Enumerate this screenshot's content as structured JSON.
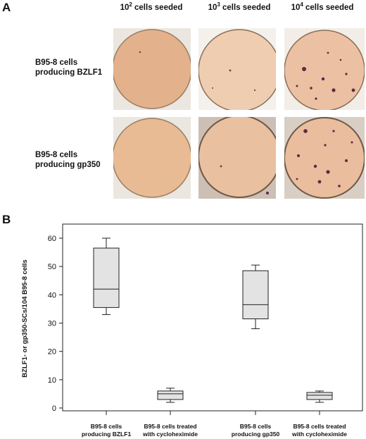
{
  "panel_a": {
    "letter": "A",
    "columns": [
      {
        "base": "10",
        "exp": "2",
        "suffix": " cells seeded"
      },
      {
        "base": "10",
        "exp": "3",
        "suffix": " cells seeded"
      },
      {
        "base": "10",
        "exp": "4",
        "suffix": " cells seeded"
      }
    ],
    "rows": [
      {
        "line1": "B95-8 cells",
        "line2": "producing BZLF1"
      },
      {
        "line1": "B95-8 cells",
        "line2": "producing gp350"
      }
    ]
  },
  "panel_b": {
    "letter": "B"
  },
  "chart_data": {
    "type": "box",
    "ylabel": "BZLF1- or gp350-SCs/104 B95-8 cells",
    "ylim": [
      0,
      65
    ],
    "yticks": [
      0,
      10,
      20,
      30,
      40,
      50,
      60
    ],
    "categories": [
      {
        "line1": "B95-8 cells",
        "line2": "producing BZLF1"
      },
      {
        "line1": "B95-8 cells treated",
        "line2": "with cycloheximide"
      },
      {
        "line1": "B95-8 cells",
        "line2": "producing gp350"
      },
      {
        "line1": "B95-8 cells treated",
        "line2": "with cycloheximide"
      }
    ],
    "boxes": [
      {
        "min": 33,
        "q1": 35.5,
        "median": 42,
        "q3": 56.5,
        "max": 60
      },
      {
        "min": 2,
        "q1": 3,
        "median": 5,
        "q3": 6,
        "max": 7
      },
      {
        "min": 28,
        "q1": 31.5,
        "median": 36.5,
        "q3": 48.5,
        "max": 50.5
      },
      {
        "min": 2,
        "q1": 3,
        "median": 4.5,
        "q3": 5.5,
        "max": 6
      }
    ],
    "box_fill": "#e3e3e3",
    "grid": false
  },
  "colors": {
    "well": "#e6b48e",
    "well_edge": "#9a7d62",
    "colony": "#5a2a44"
  }
}
